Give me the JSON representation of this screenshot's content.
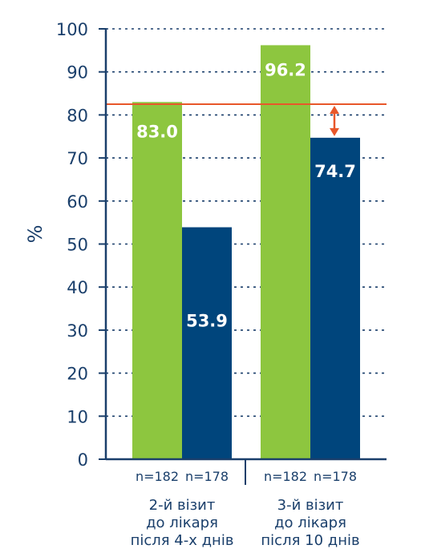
{
  "chart_data": {
    "type": "bar",
    "ylabel": "%",
    "ylim": [
      0,
      100
    ],
    "yticks": [
      0,
      10,
      20,
      30,
      40,
      50,
      60,
      70,
      80,
      90,
      100
    ],
    "grid": true,
    "groups": [
      {
        "label_lines": [
          "2-й візит",
          "до лікаря",
          "після 4-х днів"
        ],
        "bars": [
          {
            "value": 83.0,
            "label": "83.0",
            "n": "n=182",
            "color": "#8dc63f"
          },
          {
            "value": 53.9,
            "label": "53.9",
            "n": "n=178",
            "color": "#00457c"
          }
        ]
      },
      {
        "label_lines": [
          "3-й візит",
          "до лікаря",
          "після 10 днів"
        ],
        "bars": [
          {
            "value": 96.2,
            "label": "96.2",
            "n": "n=182",
            "color": "#8dc63f"
          },
          {
            "value": 74.7,
            "label": "74.7",
            "n": "n=178",
            "color": "#00457c"
          }
        ]
      }
    ],
    "reference_line": {
      "value": 82.5,
      "color": "#e8572a"
    },
    "arrow": {
      "from": 82.5,
      "to": 74.7,
      "color": "#e8572a"
    },
    "colors": {
      "axis": "#1a3f6b",
      "grid": "#1a3f6b"
    }
  }
}
